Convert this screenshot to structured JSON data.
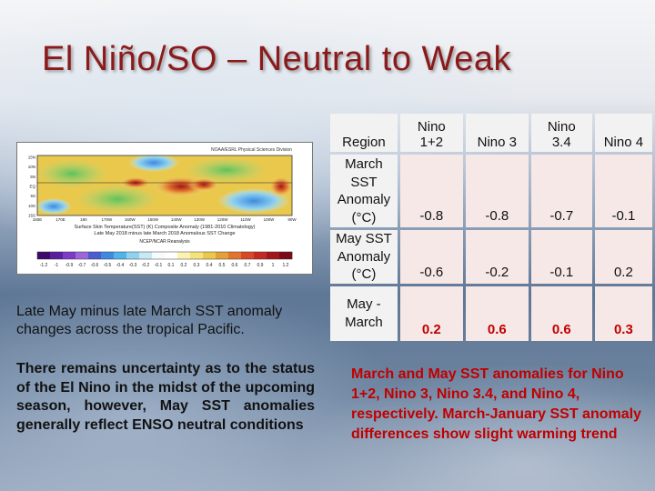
{
  "title": "El Niño/SO – Neutral to Weak",
  "map": {
    "header_right": "NOAA/ESRL Physical Sciences Division",
    "caption_line1": "Surface Skin Temperature(SST) (K) Composite Anomaly (1981-2010 Climatology)",
    "caption_line2": "Late May 2018 minus late March 2018 Anomalous SST Change",
    "caption_line3": "NCEP/NCAR Reanalysis",
    "lat_labels": [
      "15N",
      "10N",
      "5N",
      "EQ",
      "5S",
      "10S",
      "15S"
    ],
    "lon_labels": [
      "160E",
      "170E",
      "180",
      "170W",
      "160W",
      "150W",
      "140W",
      "130W",
      "120W",
      "110W",
      "100W",
      "90W"
    ],
    "colorbar_labels": [
      "-1.2",
      "-1",
      "-0.9",
      "-0.7",
      "-0.6",
      "-0.5",
      "-0.4",
      "-0.3",
      "-0.2",
      "-0.1",
      "0.1",
      "0.2",
      "0.3",
      "0.4",
      "0.5",
      "0.6",
      "0.7",
      "0.9",
      "1",
      "1.2"
    ],
    "colorbar_colors": [
      "#3b0a6b",
      "#5b1e9e",
      "#7d3ac7",
      "#9a66d9",
      "#4b5cd1",
      "#3f8ae0",
      "#4fb4ea",
      "#8fd2ef",
      "#c7e9f4",
      "#f5fbff",
      "#ffffff",
      "#fdf3b0",
      "#f4e27a",
      "#e9c84c",
      "#e5a03a",
      "#e1752d",
      "#d94a24",
      "#c42a1f",
      "#a3161c",
      "#7a0b16"
    ]
  },
  "left_caption": "Late May minus late March SST anomaly changes across the tropical Pacific.",
  "left_note": "There remains uncertainty as to the status of the El Nino in the midst of the upcoming season, however, May SST anomalies generally reflect ENSO neutral conditions",
  "right_caption": "March and May SST anomalies for Nino 1+2, Nino 3, Nino 3.4, and Nino 4, respectively. March-January SST anomaly differences show slight warming trend",
  "table": {
    "headers": [
      "Region",
      "Nino 1+2",
      "Nino 3",
      "Nino 3.4",
      "Nino 4"
    ],
    "rows": [
      {
        "label": "March SST Anomaly (°C)",
        "values": [
          "-0.8",
          "-0.8",
          "-0.7",
          "-0.1"
        ]
      },
      {
        "label": "May SST Anomaly (°C)",
        "values": [
          "-0.6",
          "-0.2",
          "-0.1",
          "0.2"
        ]
      },
      {
        "label": "May - March",
        "values": [
          "0.2",
          "0.6",
          "0.6",
          "0.3"
        ]
      }
    ]
  }
}
